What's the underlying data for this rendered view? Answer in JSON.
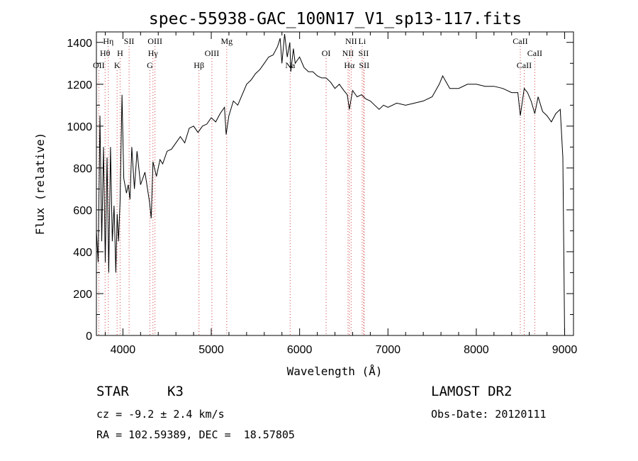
{
  "chart_data": {
    "type": "line",
    "title": "spec-55938-GAC_100N17_V1_sp13-117.fits",
    "xlabel": "Wavelength (Å)",
    "ylabel": "Flux (relative)",
    "xlim": [
      3700,
      9100
    ],
    "ylim": [
      0,
      1450
    ],
    "xticks": [
      4000,
      5000,
      6000,
      7000,
      8000,
      9000
    ],
    "yticks": [
      0,
      200,
      400,
      600,
      800,
      1000,
      1200,
      1400
    ],
    "grid": false,
    "legend": "none",
    "series": [
      {
        "x": [
          3700,
          3720,
          3740,
          3760,
          3780,
          3800,
          3820,
          3840,
          3860,
          3880,
          3900,
          3920,
          3935,
          3950,
          3968,
          3990,
          4010,
          4040,
          4060,
          4080,
          4100,
          4130,
          4160,
          4200,
          4250,
          4300,
          4320,
          4340,
          4380,
          4420,
          4450,
          4500,
          4550,
          4600,
          4650,
          4700,
          4750,
          4800,
          4850,
          4900,
          4950,
          5000,
          5050,
          5100,
          5150,
          5168,
          5200,
          5250,
          5300,
          5350,
          5400,
          5450,
          5500,
          5550,
          5600,
          5650,
          5700,
          5750,
          5780,
          5800,
          5830,
          5860,
          5890,
          5900,
          5930,
          5950,
          6000,
          6050,
          6100,
          6150,
          6200,
          6250,
          6300,
          6350,
          6400,
          6450,
          6500,
          6540,
          6563,
          6600,
          6650,
          6700,
          6750,
          6800,
          6850,
          6900,
          6950,
          7000,
          7100,
          7200,
          7300,
          7400,
          7500,
          7580,
          7620,
          7700,
          7800,
          7900,
          8000,
          8100,
          8200,
          8300,
          8400,
          8470,
          8498,
          8542,
          8580,
          8620,
          8662,
          8700,
          8750,
          8800,
          8850,
          8900,
          8950,
          8980,
          9000
        ],
        "y": [
          500,
          350,
          1050,
          450,
          900,
          350,
          850,
          300,
          900,
          450,
          620,
          300,
          580,
          450,
          640,
          1150,
          750,
          680,
          720,
          650,
          900,
          700,
          880,
          720,
          780,
          640,
          560,
          830,
          760,
          840,
          820,
          880,
          890,
          920,
          950,
          920,
          990,
          1000,
          970,
          1000,
          1010,
          1040,
          1020,
          1060,
          1090,
          960,
          1050,
          1120,
          1100,
          1150,
          1200,
          1220,
          1250,
          1270,
          1300,
          1330,
          1340,
          1380,
          1420,
          1300,
          1440,
          1330,
          1400,
          1260,
          1370,
          1300,
          1330,
          1280,
          1260,
          1260,
          1240,
          1230,
          1230,
          1210,
          1180,
          1200,
          1170,
          1150,
          1080,
          1170,
          1140,
          1150,
          1130,
          1120,
          1100,
          1080,
          1100,
          1090,
          1110,
          1100,
          1110,
          1120,
          1140,
          1200,
          1240,
          1180,
          1180,
          1200,
          1200,
          1190,
          1190,
          1180,
          1160,
          1160,
          1050,
          1180,
          1160,
          1120,
          1060,
          1140,
          1070,
          1050,
          1020,
          1060,
          1080,
          850,
          0
        ]
      }
    ],
    "lines": [
      {
        "label": "Hη",
        "x": 3835,
        "row": 0
      },
      {
        "label": "Hθ",
        "x": 3798,
        "row": 1
      },
      {
        "label": "OII",
        "x": 3727,
        "row": 2
      },
      {
        "label": "SII",
        "x": 4070,
        "row": 0
      },
      {
        "label": "H",
        "x": 3968,
        "row": 1
      },
      {
        "label": "K",
        "x": 3934,
        "row": 2
      },
      {
        "label": "OIII",
        "x": 4363,
        "row": 0
      },
      {
        "label": "Hγ",
        "x": 4340,
        "row": 1
      },
      {
        "label": "G",
        "x": 4305,
        "row": 2
      },
      {
        "label": "Mg",
        "x": 5175,
        "row": 0
      },
      {
        "label": "OIII",
        "x": 5007,
        "row": 1
      },
      {
        "label": "Hβ",
        "x": 4861,
        "row": 2
      },
      {
        "label": "Na",
        "x": 5893,
        "row": 2
      },
      {
        "label": "OI",
        "x": 6300,
        "row": 1
      },
      {
        "label": "NII",
        "x": 6583,
        "row": 0
      },
      {
        "label": "NII",
        "x": 6548,
        "row": 1
      },
      {
        "label": "Hα",
        "x": 6563,
        "row": 2
      },
      {
        "label": "Li",
        "x": 6708,
        "row": 0
      },
      {
        "label": "SII",
        "x": 6724,
        "row": 1
      },
      {
        "label": "SII",
        "x": 6731,
        "row": 2
      },
      {
        "label": "CaII",
        "x": 8498,
        "row": 0
      },
      {
        "label": "CaII",
        "x": 8662,
        "row": 1
      },
      {
        "label": "CaII",
        "x": 8542,
        "row": 2
      }
    ]
  },
  "info": {
    "object_class": "STAR",
    "subclass": "K3",
    "survey": "LAMOST DR2",
    "redshift": "cz = -9.2 ± 2.4 km/s",
    "obs_date": "Obs-Date: 20120111",
    "coords": "RA = 102.59389, DEC =  18.57805"
  },
  "colors": {
    "line_markers": "#d04040",
    "spectrum": "#000000"
  }
}
